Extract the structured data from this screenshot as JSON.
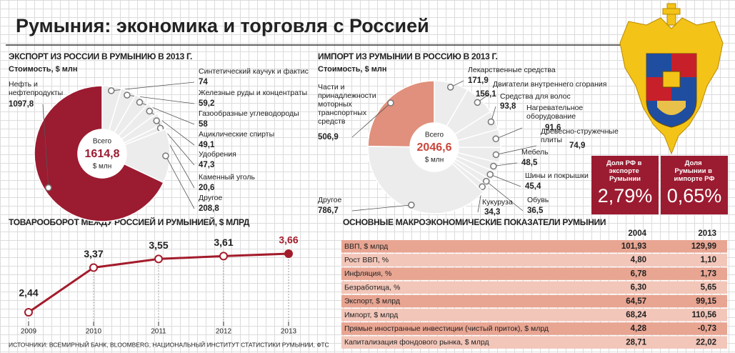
{
  "title": "Румыния: экономика и торговля с Россией",
  "chart_data": [
    {
      "type": "donut",
      "title": "ЭКСПОРТ ИЗ РОССИИ В РУМЫНИЮ В 2013 Г.",
      "subtitle": "Стоимость, $ млн",
      "categories": [
        "Синтетический каучук и фактис",
        "Железные руды и концентраты",
        "Газообразные углеводороды",
        "Ациклические спирты",
        "Удобрения",
        "Каменный уголь",
        "Другое",
        "Нефть и нефтепродукты"
      ],
      "values": [
        74,
        59.2,
        58,
        49.1,
        47.3,
        20.6,
        208.8,
        1097.8
      ],
      "value_labels": [
        "74",
        "59,2",
        "58",
        "49,1",
        "47,3",
        "20,6",
        "208,8",
        "1097,8"
      ],
      "colors": [
        "#ececec",
        "#ececec",
        "#ececec",
        "#ececec",
        "#ececec",
        "#ececec",
        "#ececec",
        "#9b1b30"
      ],
      "total_title": "Всего",
      "total": {
        "value": 1614.8,
        "label": "1614,8"
      },
      "total_unit": "$ млн",
      "total_color": "#9b1b30"
    },
    {
      "type": "donut",
      "title": "ИМПОРТ ИЗ РУМЫНИИ В РОССИЮ В 2013 Г.",
      "subtitle": "Стоимость, $ млн",
      "categories": [
        "Лекарственные средства",
        "Двигатели внутреннего сгорания",
        "Средства для волос",
        "Нагревательное оборудование",
        "Древесно-стружечные плиты",
        "Мебель",
        "Шины и покрышки",
        "Обувь",
        "Кукуруза",
        "Другое",
        "Части и принадлежности моторных транспортных средств"
      ],
      "values": [
        171.9,
        156.1,
        93.8,
        91.6,
        74.9,
        48.5,
        45.4,
        36.5,
        34.3,
        786.7,
        506.9
      ],
      "value_labels": [
        "171,9",
        "156,1",
        "93,8",
        "91,6",
        "74,9",
        "48,5",
        "45,4",
        "36,5",
        "34,3",
        "786,7",
        "506,9"
      ],
      "colors": [
        "#ececec",
        "#ececec",
        "#ececec",
        "#ececec",
        "#ececec",
        "#ececec",
        "#ececec",
        "#ececec",
        "#ececec",
        "#ececec",
        "#e0907c"
      ],
      "total_title": "Всего",
      "total": {
        "value": 2046.6,
        "label": "2046,6"
      },
      "total_unit": "$ млн",
      "total_color": "#c9463a"
    },
    {
      "type": "line",
      "title": "ТОВАРООБОРОТ МЕЖДУ РОССИЕЙ И РУМЫНИЕЙ, $ МЛРД",
      "categories": [
        "2009",
        "2010",
        "2011",
        "2012",
        "2013"
      ],
      "values": [
        2.44,
        3.37,
        3.55,
        3.61,
        3.66
      ],
      "value_labels": [
        "2,44",
        "3,37",
        "3,55",
        "3,61",
        "3,66"
      ],
      "color": "#a31c2c"
    }
  ],
  "shares": [
    {
      "label": "Доля РФ в экспорте Румынии",
      "value": 2.79,
      "value_label": "2,79%"
    },
    {
      "label": "Доля Румынии в импорте РФ",
      "value": 0.65,
      "value_label": "0,65%"
    }
  ],
  "table": {
    "title": "ОСНОВНЫЕ МАКРОЭКОНОМИЧЕСКИЕ ПОКАЗАТЕЛИ РУМЫНИИ",
    "columns": [
      "2004",
      "2013"
    ],
    "rows": [
      [
        "ВВП, $ млрд",
        "101,93",
        "129,99"
      ],
      [
        "Рост ВВП, %",
        "4,80",
        "1,10"
      ],
      [
        "Инфляция, %",
        "6,78",
        "1,73"
      ],
      [
        "Безработица, %",
        "6,30",
        "5,65"
      ],
      [
        "Экспорт, $ млрд",
        "64,57",
        "99,15"
      ],
      [
        "Импорт, $ млрд",
        "68,24",
        "110,56"
      ],
      [
        "Прямые иностранные инвестиции (чистый приток), $ млрд",
        "4,28",
        "-0,73"
      ],
      [
        "Капитализация фондового рынка, $ млрд",
        "28,71",
        "22,02"
      ]
    ]
  },
  "source": "ИСТОЧНИКИ: ВСЕМИРНЫЙ БАНК, BLOOMBERG, НАЦИОНАЛЬНЫЙ ИНСТИТУТ СТАТИСТИКИ РУМЫНИИ, ФТС"
}
